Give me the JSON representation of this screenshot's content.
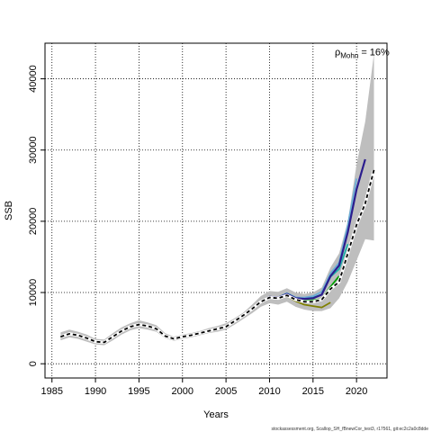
{
  "chart_data": {
    "type": "line",
    "xlabel": "Years",
    "ylabel": "SSB",
    "xlim": [
      1984.2,
      2023.5
    ],
    "ylim": [
      -2000,
      45000
    ],
    "x_ticks": [
      1985,
      1990,
      1995,
      2000,
      2005,
      2010,
      2015,
      2020
    ],
    "y_ticks": [
      0,
      10000,
      20000,
      30000,
      40000
    ],
    "grid": true,
    "mohn_label": {
      "prefix": "ρ",
      "subscript": "Mohn",
      "value": " = 16%",
      "x": 2017.5,
      "y": 43300
    },
    "footer": "stockassessment.org, Scallop_SH_fBnewCor_test3, r17561, git:ec2c2a0c8dde",
    "confidence_band": {
      "color": "#bebebe",
      "x": [
        1986,
        1987,
        1988,
        1989,
        1990,
        1991,
        1992,
        1993,
        1994,
        1995,
        1996,
        1997,
        1998,
        1999,
        2000,
        2001,
        2002,
        2003,
        2004,
        2005,
        2006,
        2007,
        2008,
        2009,
        2010,
        2011,
        2012,
        2013,
        2014,
        2015,
        2016,
        2017,
        2018,
        2019,
        2020,
        2021,
        2022
      ],
      "lower": [
        3300,
        3700,
        3500,
        3100,
        2700,
        2600,
        3300,
        4100,
        4700,
        5000,
        4800,
        4500,
        3600,
        3200,
        3500,
        3700,
        4000,
        4300,
        4500,
        4800,
        5500,
        6300,
        7100,
        8000,
        8500,
        8300,
        8700,
        8000,
        7600,
        7400,
        7400,
        7800,
        9200,
        11500,
        14500,
        17500,
        17300
      ],
      "upper": [
        4400,
        4800,
        4500,
        4100,
        3500,
        3400,
        4300,
        5100,
        5700,
        6100,
        5800,
        5400,
        4300,
        3800,
        4100,
        4300,
        4600,
        5000,
        5300,
        5700,
        6400,
        7200,
        8300,
        9500,
        10200,
        10100,
        10600,
        10000,
        9800,
        10000,
        10700,
        13500,
        15500,
        20000,
        28000,
        34000,
        43500
      ]
    },
    "series": [
      {
        "color": "#000000",
        "dashed": true,
        "width": 1.8,
        "x": [
          1986,
          1987,
          1988,
          1989,
          1990,
          1991,
          1992,
          1993,
          1994,
          1995,
          1996,
          1997,
          1998,
          1999,
          2000,
          2001,
          2002,
          2003,
          2004,
          2005,
          2006,
          2007,
          2008,
          2009,
          2010,
          2011,
          2012,
          2013,
          2014,
          2015,
          2016,
          2017,
          2018,
          2019,
          2020,
          2021,
          2022
        ],
        "values": [
          3800,
          4200,
          4000,
          3600,
          3100,
          3000,
          3800,
          4600,
          5200,
          5500,
          5300,
          4900,
          3900,
          3500,
          3800,
          4000,
          4300,
          4600,
          4900,
          5200,
          6000,
          6800,
          7700,
          8700,
          9300,
          9200,
          9600,
          9000,
          8700,
          8700,
          9000,
          10500,
          11500,
          15500,
          19500,
          22500,
          27200
        ]
      },
      {
        "color": "#7f7f00",
        "dashed": false,
        "width": 1.8,
        "x": [
          1986,
          1987,
          1988,
          1989,
          1990,
          1991,
          1992,
          1993,
          1994,
          1995,
          1996,
          1997,
          1998,
          1999,
          2000,
          2001,
          2002,
          2003,
          2004,
          2005,
          2006,
          2007,
          2008,
          2009,
          2010,
          2011,
          2012,
          2013,
          2014,
          2015,
          2016,
          2017
        ],
        "values": [
          3750,
          4150,
          3950,
          3550,
          3050,
          2950,
          3750,
          4550,
          5150,
          5450,
          5250,
          4850,
          3850,
          3450,
          3750,
          3950,
          4250,
          4550,
          4850,
          5150,
          5950,
          6750,
          7650,
          8650,
          9250,
          9150,
          9500,
          8800,
          8300,
          8100,
          7900,
          8600
        ]
      },
      {
        "color": "#00a000",
        "dashed": false,
        "width": 1.8,
        "x": [
          1986,
          1987,
          1988,
          1989,
          1990,
          1991,
          1992,
          1993,
          1994,
          1995,
          1996,
          1997,
          1998,
          1999,
          2000,
          2001,
          2002,
          2003,
          2004,
          2005,
          2006,
          2007,
          2008,
          2009,
          2010,
          2011,
          2012,
          2013,
          2014,
          2015,
          2016,
          2017,
          2018
        ],
        "values": [
          3800,
          4200,
          4000,
          3600,
          3100,
          3000,
          3800,
          4600,
          5200,
          5500,
          5300,
          4900,
          3900,
          3500,
          3800,
          4000,
          4300,
          4600,
          4900,
          5200,
          6000,
          6800,
          7700,
          8700,
          9300,
          9200,
          9700,
          9100,
          8900,
          8900,
          9100,
          10800,
          12300
        ]
      },
      {
        "color": "#20b2aa",
        "dashed": false,
        "width": 1.8,
        "x": [
          1986,
          1987,
          1988,
          1989,
          1990,
          1991,
          1992,
          1993,
          1994,
          1995,
          1996,
          1997,
          1998,
          1999,
          2000,
          2001,
          2002,
          2003,
          2004,
          2005,
          2006,
          2007,
          2008,
          2009,
          2010,
          2011,
          2012,
          2013,
          2014,
          2015,
          2016,
          2017,
          2018,
          2019
        ],
        "values": [
          3800,
          4200,
          4000,
          3600,
          3100,
          3000,
          3800,
          4600,
          5200,
          5500,
          5300,
          4900,
          3900,
          3500,
          3800,
          4000,
          4300,
          4600,
          4900,
          5200,
          6000,
          6800,
          7700,
          8700,
          9400,
          9300,
          9900,
          9300,
          9200,
          9300,
          9700,
          12200,
          13300,
          16800
        ]
      },
      {
        "color": "#6baed6",
        "dashed": false,
        "width": 1.8,
        "x": [
          1986,
          1987,
          1988,
          1989,
          1990,
          1991,
          1992,
          1993,
          1994,
          1995,
          1996,
          1997,
          1998,
          1999,
          2000,
          2001,
          2002,
          2003,
          2004,
          2005,
          2006,
          2007,
          2008,
          2009,
          2010,
          2011,
          2012,
          2013,
          2014,
          2015,
          2016,
          2017,
          2018,
          2019,
          2020
        ],
        "values": [
          3800,
          4200,
          4000,
          3600,
          3100,
          3000,
          3800,
          4600,
          5200,
          5500,
          5300,
          4900,
          3900,
          3500,
          3800,
          4000,
          4300,
          4600,
          4900,
          5200,
          6000,
          6800,
          7700,
          8700,
          9400,
          9300,
          9900,
          9300,
          9300,
          9500,
          10100,
          12700,
          14200,
          19500,
          26000
        ]
      },
      {
        "color": "#2b1d8e",
        "dashed": false,
        "width": 2.2,
        "x": [
          1986,
          1987,
          1988,
          1989,
          1990,
          1991,
          1992,
          1993,
          1994,
          1995,
          1996,
          1997,
          1998,
          1999,
          2000,
          2001,
          2002,
          2003,
          2004,
          2005,
          2006,
          2007,
          2008,
          2009,
          2010,
          2011,
          2012,
          2013,
          2014,
          2015,
          2016,
          2017,
          2018,
          2019,
          2020,
          2021
        ],
        "values": [
          3800,
          4200,
          4000,
          3600,
          3100,
          3000,
          3800,
          4600,
          5200,
          5500,
          5300,
          4900,
          3900,
          3500,
          3800,
          4000,
          4300,
          4600,
          4900,
          5200,
          6000,
          6800,
          7700,
          8700,
          9400,
          9300,
          9800,
          9200,
          9100,
          9200,
          9700,
          12300,
          13800,
          18500,
          24500,
          28700
        ]
      }
    ]
  }
}
